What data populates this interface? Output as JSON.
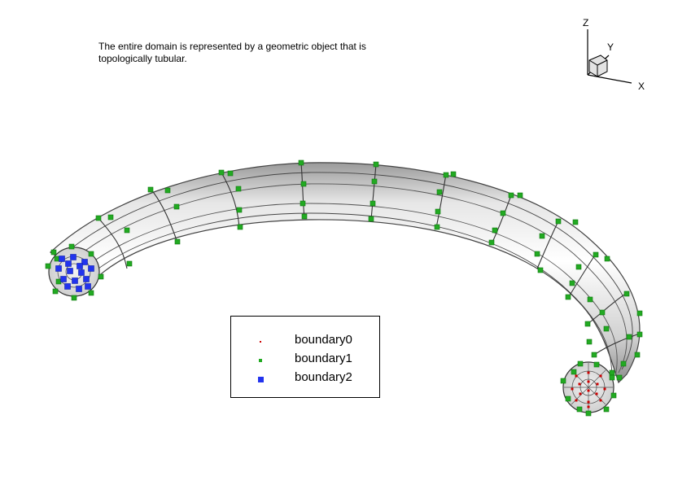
{
  "caption": {
    "line1": "The entire domain is represented by a geometric object that is",
    "line2": "topologically tubular."
  },
  "axes_triad": {
    "z_label": "Z",
    "y_label": "Y",
    "x_label": "X"
  },
  "legend": {
    "entries": [
      {
        "label": "boundary0",
        "color": "#cc0000",
        "marker": "tiny-dot"
      },
      {
        "label": "boundary1",
        "color": "#22aa22",
        "marker": "small-square"
      },
      {
        "label": "boundary2",
        "color": "#2233ee",
        "marker": "square"
      }
    ]
  },
  "colors": {
    "tube_light": "#f4f4f4",
    "tube_shade": "#bdbdbd",
    "mesh_line": "#333333",
    "boundary0": "#cc0000",
    "boundary1": "#22aa22",
    "boundary2": "#2233ee"
  }
}
